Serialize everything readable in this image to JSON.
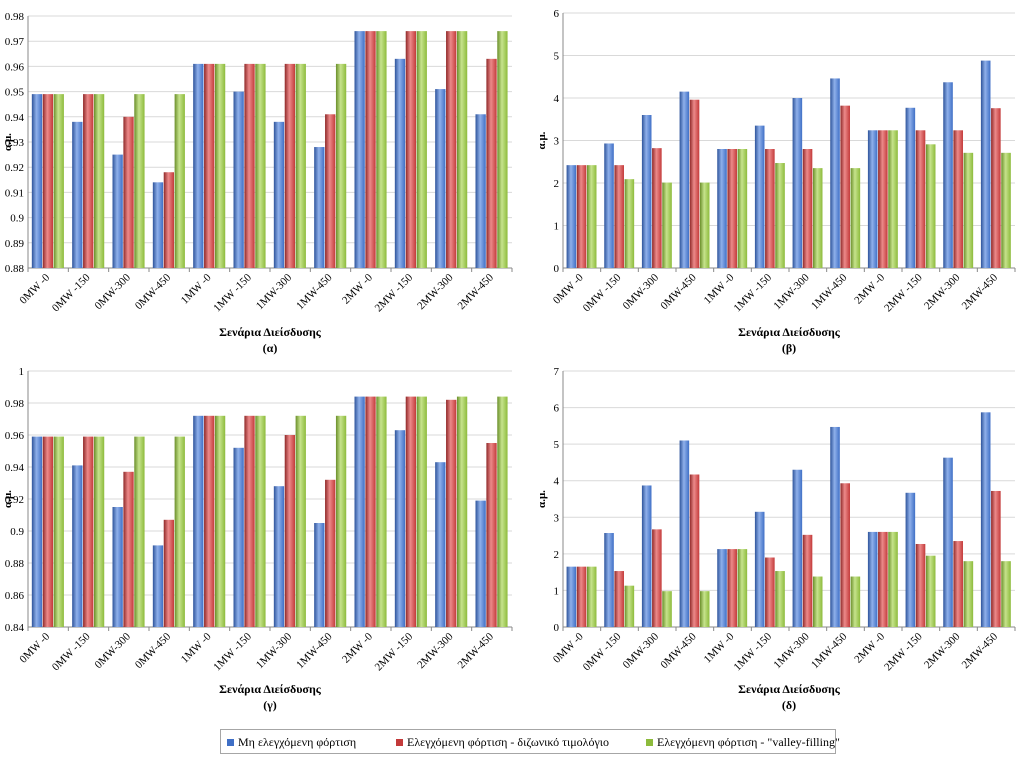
{
  "legend": {
    "series": [
      {
        "name": "Μη ελεγχόμενη φόρτιση",
        "color": "#3f6fc6"
      },
      {
        "name": "Ελεγχόμενη φόρτιση - διζωνικό τιμολόγιο",
        "color": "#c33a3a"
      },
      {
        "name": "Ελεγχόμενη φόρτιση - \"valley-filling\"",
        "color": "#8dbb3c"
      }
    ]
  },
  "chart_data": [
    {
      "type": "bar",
      "panel_label": "(α)",
      "xlabel": "Σενάρια Διείσδυσης",
      "ylabel": "α.μ.",
      "ylim": [
        0.88,
        0.98
      ],
      "ticks": [
        "0.88",
        "0.89",
        "0.9",
        "0.91",
        "0.92",
        "0.93",
        "0.94",
        "0.95",
        "0.96",
        "0.97",
        "0.98"
      ],
      "categories": [
        "0MW -0",
        "0MW -150",
        "0MW-300",
        "0MW-450",
        "1MW -0",
        "1MW -150",
        "1MW-300",
        "1MW-450",
        "2MW -0",
        "2MW -150",
        "2MW-300",
        "2MW-450"
      ],
      "series": [
        {
          "name": "Μη ελεγχόμενη φόρτιση",
          "values": [
            0.949,
            0.938,
            0.925,
            0.914,
            0.961,
            0.95,
            0.938,
            0.928,
            0.974,
            0.963,
            0.951,
            0.941
          ]
        },
        {
          "name": "Ελεγχόμενη φόρτιση - διζωνικό τιμολόγιο",
          "values": [
            0.949,
            0.949,
            0.94,
            0.918,
            0.961,
            0.961,
            0.961,
            0.941,
            0.974,
            0.974,
            0.974,
            0.963
          ]
        },
        {
          "name": "Ελεγχόμενη φόρτιση - \"valley-filling\"",
          "values": [
            0.949,
            0.949,
            0.949,
            0.949,
            0.961,
            0.961,
            0.961,
            0.961,
            0.974,
            0.974,
            0.974,
            0.974
          ]
        }
      ]
    },
    {
      "type": "bar",
      "panel_label": "(β)",
      "xlabel": "Σενάρια Διείσδυσης",
      "ylabel": "α.μ.",
      "ylim": [
        0,
        6
      ],
      "ticks": [
        "0",
        "1",
        "2",
        "3",
        "4",
        "5",
        "6"
      ],
      "categories": [
        "0MW -0",
        "0MW -150",
        "0MW-300",
        "0MW-450",
        "1MW -0",
        "1MW -150",
        "1MW-300",
        "1MW-450",
        "2MW -0",
        "2MW -150",
        "2MW-300",
        "2MW-450"
      ],
      "series": [
        {
          "name": "Μη ελεγχόμενη φόρτιση",
          "values": [
            2.42,
            2.93,
            3.6,
            4.15,
            2.8,
            3.35,
            4.0,
            4.46,
            3.24,
            3.77,
            4.37,
            4.88
          ]
        },
        {
          "name": "Ελεγχόμενη φόρτιση - διζωνικό τιμολόγιο",
          "values": [
            2.42,
            2.42,
            2.82,
            3.96,
            2.8,
            2.8,
            2.8,
            3.82,
            3.24,
            3.24,
            3.24,
            3.76
          ]
        },
        {
          "name": "Ελεγχόμενη φόρτιση - \"valley-filling\"",
          "values": [
            2.42,
            2.09,
            2.01,
            2.01,
            2.8,
            2.47,
            2.35,
            2.35,
            3.24,
            2.91,
            2.71,
            2.71
          ]
        }
      ]
    },
    {
      "type": "bar",
      "panel_label": "(γ)",
      "xlabel": "Σενάρια Διείσδυσης",
      "ylabel": "α.μ.",
      "ylim": [
        0.84,
        1.0
      ],
      "ticks": [
        "0.84",
        "0.86",
        "0.88",
        "0.9",
        "0.92",
        "0.94",
        "0.96",
        "0.98",
        "1"
      ],
      "categories": [
        "0MW -0",
        "0MW -150",
        "0MW-300",
        "0MW-450",
        "1MW -0",
        "1MW -150",
        "1MW-300",
        "1MW-450",
        "2MW -0",
        "2MW -150",
        "2MW-300",
        "2MW-450"
      ],
      "series": [
        {
          "name": "Μη ελεγχόμενη φόρτιση",
          "values": [
            0.959,
            0.941,
            0.915,
            0.891,
            0.972,
            0.952,
            0.928,
            0.905,
            0.984,
            0.963,
            0.943,
            0.919
          ]
        },
        {
          "name": "Ελεγχόμενη φόρτιση - διζωνικό τιμολόγιο",
          "values": [
            0.959,
            0.959,
            0.937,
            0.907,
            0.972,
            0.972,
            0.96,
            0.932,
            0.984,
            0.984,
            0.982,
            0.955
          ]
        },
        {
          "name": "Ελεγχόμενη φόρτιση - \"valley-filling\"",
          "values": [
            0.959,
            0.959,
            0.959,
            0.959,
            0.972,
            0.972,
            0.972,
            0.972,
            0.984,
            0.984,
            0.984,
            0.984
          ]
        }
      ]
    },
    {
      "type": "bar",
      "panel_label": "(δ)",
      "xlabel": "Σενάρια Διείσδυσης",
      "ylabel": "α.μ.",
      "ylim": [
        0,
        7
      ],
      "ticks": [
        "0",
        "1",
        "2",
        "3",
        "4",
        "5",
        "6",
        "7"
      ],
      "categories": [
        "0MW -0",
        "0MW -150",
        "0MW-300",
        "0MW-450",
        "1MW -0",
        "1MW -150",
        "1MW-300",
        "1MW-450",
        "2MW -0",
        "2MW -150",
        "2MW-300",
        "2MW-450"
      ],
      "series": [
        {
          "name": "Μη ελεγχόμενη φόρτιση",
          "values": [
            1.65,
            2.57,
            3.87,
            5.1,
            2.13,
            3.15,
            4.3,
            5.47,
            2.6,
            3.67,
            4.63,
            5.87
          ]
        },
        {
          "name": "Ελεγχόμενη φόρτιση - διζωνικό τιμολόγιο",
          "values": [
            1.65,
            1.53,
            2.67,
            4.17,
            2.13,
            1.9,
            2.52,
            3.93,
            2.6,
            2.27,
            2.35,
            3.72
          ]
        },
        {
          "name": "Ελεγχόμενη φόρτιση - \"valley-filling\"",
          "values": [
            1.65,
            1.13,
            0.98,
            0.98,
            2.13,
            1.53,
            1.38,
            1.38,
            2.6,
            1.95,
            1.8,
            1.8
          ]
        }
      ]
    }
  ]
}
